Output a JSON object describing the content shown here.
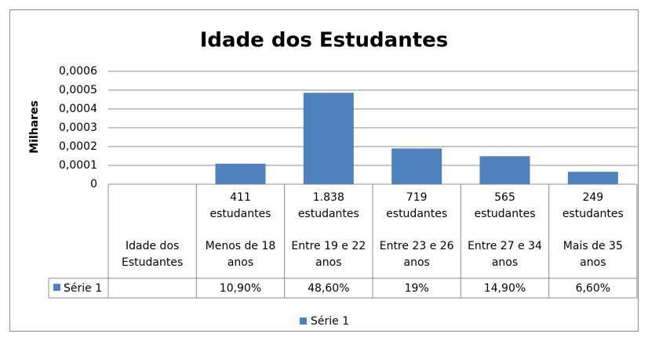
{
  "chart_data": {
    "type": "bar",
    "title": "Idade dos Estudantes",
    "ylabel": "Milhares",
    "categories": [
      "Idade dos Estudantes",
      "Menos de 18 anos",
      "Entre 19 e 22 anos",
      "Entre 23 e 26 anos",
      "Entre 27 e 34 anos",
      "Mais de 35 anos"
    ],
    "category_counts": [
      null,
      "411 estudantes",
      "1.838 estudantes",
      "719 estudantes",
      "565 estudantes",
      "249 estudantes"
    ],
    "series": [
      {
        "name": "Série 1",
        "color": "#4f81bd",
        "values": [
          null,
          0.000109,
          0.000486,
          0.00019,
          0.000149,
          6.6e-05
        ],
        "value_labels": [
          null,
          "10,90%",
          "48,60%",
          "19%",
          "14,90%",
          "6,60%"
        ]
      }
    ],
    "ylim": [
      0,
      0.0006
    ],
    "yticks": [
      0,
      {
        "value": 0.0001,
        "label": "0,0001"
      },
      {
        "value": 0.0002,
        "label": "0,0002"
      },
      {
        "value": 0.0003,
        "label": "0,0003"
      },
      {
        "value": 0.0004,
        "label": "0,0004"
      },
      {
        "value": 0.0005,
        "label": "0,0005"
      },
      {
        "value": 0.0006,
        "label": "0,0006"
      }
    ],
    "grid": true,
    "legend": "bottom"
  }
}
